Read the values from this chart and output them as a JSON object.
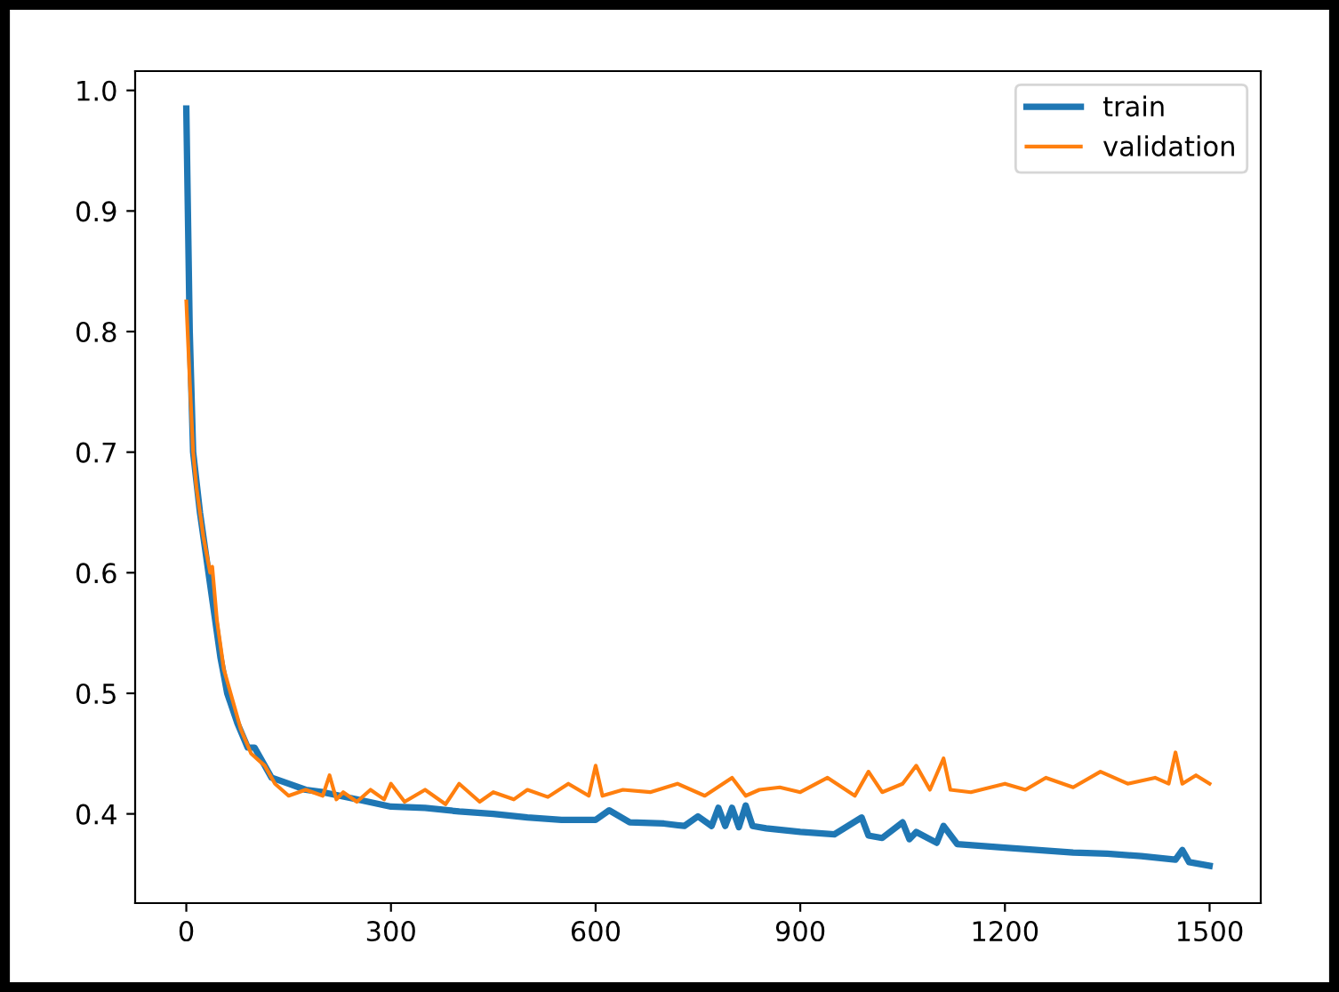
{
  "chart_data": {
    "type": "line",
    "xlim": [
      -75,
      1575
    ],
    "xticks": [
      0,
      300,
      600,
      900,
      1200,
      1500
    ],
    "ylim": [
      0.326,
      1.016
    ],
    "yticks": [
      0.4,
      0.5,
      0.6,
      0.7,
      0.8,
      0.9,
      {
        "value": 1.0,
        "label": "1.0"
      }
    ],
    "legend": "top right",
    "grid": false,
    "series": [
      {
        "name": "train",
        "color": "#1f77b4",
        "x": [
          0,
          5,
          10,
          20,
          30,
          40,
          50,
          60,
          75,
          90,
          100,
          110,
          125,
          150,
          175,
          200,
          250,
          300,
          350,
          400,
          450,
          500,
          550,
          600,
          620,
          650,
          700,
          730,
          750,
          770,
          780,
          790,
          800,
          810,
          820,
          830,
          850,
          900,
          950,
          990,
          1000,
          1020,
          1050,
          1060,
          1070,
          1100,
          1110,
          1130,
          1200,
          1250,
          1300,
          1350,
          1400,
          1450,
          1460,
          1470,
          1500
        ],
        "values": [
          0.985,
          0.8,
          0.7,
          0.65,
          0.61,
          0.57,
          0.53,
          0.5,
          0.475,
          0.455,
          0.455,
          0.445,
          0.43,
          0.425,
          0.42,
          0.418,
          0.412,
          0.406,
          0.405,
          0.402,
          0.4,
          0.397,
          0.395,
          0.395,
          0.403,
          0.393,
          0.392,
          0.39,
          0.398,
          0.39,
          0.405,
          0.39,
          0.405,
          0.389,
          0.407,
          0.39,
          0.388,
          0.385,
          0.383,
          0.397,
          0.382,
          0.38,
          0.393,
          0.379,
          0.385,
          0.376,
          0.39,
          0.375,
          0.372,
          0.37,
          0.368,
          0.367,
          0.365,
          0.362,
          0.37,
          0.36,
          0.357
        ]
      },
      {
        "name": "validation",
        "color": "#ff7f0e",
        "x": [
          0,
          5,
          10,
          15,
          25,
          35,
          38,
          45,
          55,
          65,
          80,
          95,
          105,
          115,
          130,
          150,
          175,
          200,
          210,
          220,
          230,
          250,
          270,
          290,
          300,
          320,
          350,
          380,
          400,
          430,
          450,
          480,
          500,
          530,
          560,
          590,
          600,
          610,
          640,
          680,
          720,
          760,
          800,
          820,
          840,
          870,
          900,
          940,
          980,
          1000,
          1020,
          1050,
          1070,
          1090,
          1110,
          1120,
          1150,
          1200,
          1230,
          1260,
          1300,
          1340,
          1380,
          1420,
          1440,
          1450,
          1460,
          1480,
          1500
        ],
        "values": [
          0.825,
          0.76,
          0.7,
          0.67,
          0.63,
          0.6,
          0.605,
          0.56,
          0.52,
          0.5,
          0.47,
          0.45,
          0.445,
          0.44,
          0.425,
          0.415,
          0.42,
          0.415,
          0.432,
          0.412,
          0.418,
          0.41,
          0.42,
          0.412,
          0.425,
          0.41,
          0.42,
          0.408,
          0.425,
          0.41,
          0.418,
          0.412,
          0.42,
          0.414,
          0.425,
          0.415,
          0.44,
          0.415,
          0.42,
          0.418,
          0.425,
          0.415,
          0.43,
          0.415,
          0.42,
          0.422,
          0.418,
          0.43,
          0.415,
          0.435,
          0.418,
          0.425,
          0.44,
          0.42,
          0.446,
          0.42,
          0.418,
          0.425,
          0.42,
          0.43,
          0.422,
          0.435,
          0.425,
          0.43,
          0.425,
          0.451,
          0.425,
          0.432,
          0.425
        ]
      }
    ]
  }
}
